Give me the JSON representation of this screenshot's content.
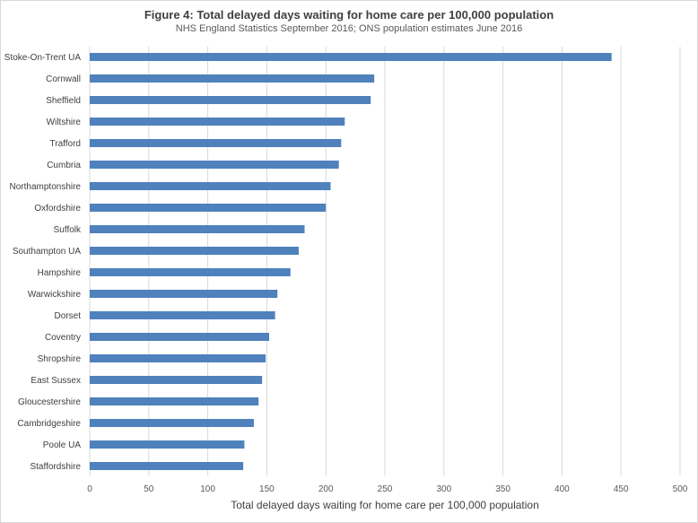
{
  "chart_data": {
    "type": "bar",
    "orientation": "horizontal",
    "title": "Figure 4: Total delayed days waiting for home care per 100,000 population",
    "subtitle": "NHS England Statistics September 2016; ONS population estimates June 2016",
    "xlabel": "Total delayed days waiting for home care per 100,000 population",
    "ylabel": "",
    "xlim": [
      0,
      500
    ],
    "ticks": [
      0,
      50,
      100,
      150,
      200,
      250,
      300,
      350,
      400,
      450,
      500
    ],
    "tick_labels": [
      "0",
      "50",
      "100",
      "150",
      "200",
      "250",
      "300",
      "350",
      "400",
      "450",
      "500"
    ],
    "categories": [
      "Stoke-On-Trent UA",
      "Cornwall",
      "Sheffield",
      "Wiltshire",
      "Trafford",
      "Cumbria",
      "Northamptonshire",
      "Oxfordshire",
      "Suffolk",
      "Southampton UA",
      "Hampshire",
      "Warwickshire",
      "Dorset",
      "Coventry",
      "Shropshire",
      "East Sussex",
      "Gloucestershire",
      "Cambridgeshire",
      "Poole UA",
      "Staffordshire"
    ],
    "values": [
      442,
      241,
      238,
      216,
      213,
      211,
      204,
      200,
      182,
      177,
      170,
      159,
      157,
      152,
      149,
      146,
      143,
      139,
      131,
      130
    ],
    "bar_color": "#4f81bd",
    "grid": true
  }
}
